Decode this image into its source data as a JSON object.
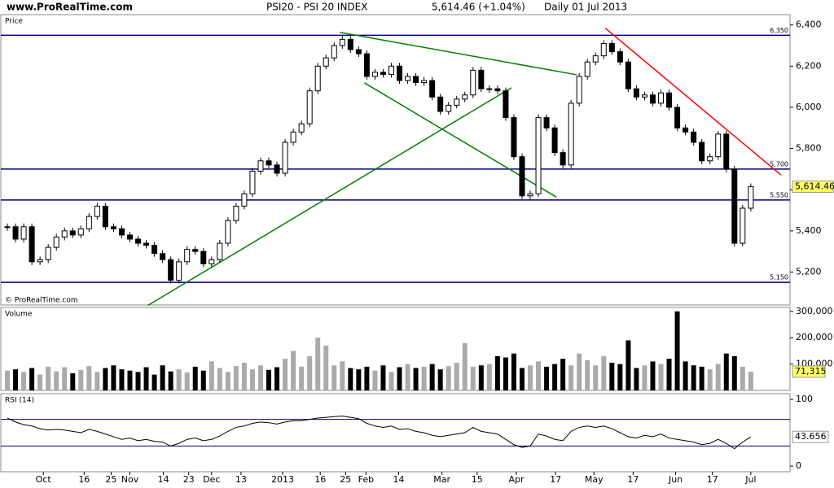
{
  "chart_data": [
    {
      "type": "candlestick",
      "site": "www.ProRealTime.com",
      "title": "PSI20 - PSI 20 INDEX",
      "last": "5,614.46 (+1.04%)",
      "period": "Daily  01 Jul 2013",
      "panel_label": "Price",
      "copyright": "© ProRealTime.com",
      "last_label": "5,614.46",
      "xlim": [
        -0.8,
        95.8
      ],
      "xticks": [
        {
          "value": 4.4,
          "label": "Oct"
        },
        {
          "value": 9.4,
          "label": "16"
        },
        {
          "value": 12.7,
          "label": "25"
        },
        {
          "value": 15,
          "label": "Nov"
        },
        {
          "value": 19.1,
          "label": "14"
        },
        {
          "value": 22.2,
          "label": "23"
        },
        {
          "value": 25,
          "label": "Dec"
        },
        {
          "value": 28.6,
          "label": "13"
        },
        {
          "value": 33.7,
          "label": "2013"
        },
        {
          "value": 38.3,
          "label": "16"
        },
        {
          "value": 41.4,
          "label": "25"
        },
        {
          "value": 43.9,
          "label": "Feb"
        },
        {
          "value": 47.9,
          "label": "14"
        },
        {
          "value": 53.2,
          "label": "Mar"
        },
        {
          "value": 57.5,
          "label": "15"
        },
        {
          "value": 62.3,
          "label": "Apr"
        },
        {
          "value": 67.1,
          "label": "17"
        },
        {
          "value": 71.8,
          "label": "May"
        },
        {
          "value": 76.6,
          "label": "17"
        },
        {
          "value": 81.8,
          "label": "Jun"
        },
        {
          "value": 86.3,
          "label": "17"
        },
        {
          "value": 91,
          "label": "Jul"
        }
      ],
      "ylim": [
        5040,
        6450
      ],
      "yticks": [
        {
          "value": 5200,
          "label": "5,200"
        },
        {
          "value": 5400,
          "label": "5,400"
        },
        {
          "value": 5600,
          "label": "5,600"
        },
        {
          "value": 5800,
          "label": "5,800"
        },
        {
          "value": 6000,
          "label": "6,000"
        },
        {
          "value": 6200,
          "label": "6,200"
        },
        {
          "value": 6400,
          "label": "6,400"
        }
      ],
      "levels": [
        {
          "value": 6350,
          "label": "6,350"
        },
        {
          "value": 5700,
          "label": "5,700"
        },
        {
          "value": 5550,
          "label": "5,550"
        },
        {
          "value": 5150,
          "label": "5,150"
        }
      ],
      "level_color": "#000080",
      "trendlines": [
        {
          "color": "#008000",
          "x": [
            17.2,
            61.7
          ],
          "y": [
            5038,
            6095
          ]
        },
        {
          "color": "#008000",
          "x": [
            43.7,
            67.2
          ],
          "y": [
            6119,
            5564
          ]
        },
        {
          "color": "#008000",
          "x": [
            40.7,
            69.7
          ],
          "y": [
            6364,
            6158
          ]
        },
        {
          "color": "#ff0000",
          "x": [
            73.2,
            94.7
          ],
          "y": [
            6384,
            5671
          ]
        }
      ],
      "close": [
        5420,
        5360,
        5420,
        5250,
        5260,
        5320,
        5370,
        5400,
        5380,
        5410,
        5470,
        5520,
        5420,
        5410,
        5380,
        5360,
        5340,
        5330,
        5290,
        5260,
        5160,
        5250,
        5310,
        5300,
        5240,
        5260,
        5340,
        5450,
        5520,
        5580,
        5690,
        5740,
        5720,
        5680,
        5830,
        5880,
        5920,
        6080,
        6200,
        6240,
        6300,
        6330,
        6280,
        6260,
        6150,
        6170,
        6160,
        6200,
        6130,
        6150,
        6120,
        6130,
        6050,
        5980,
        6010,
        6040,
        6060,
        6180,
        6090,
        6090,
        6080,
        5950,
        5760,
        5570,
        5580,
        5950,
        5900,
        5780,
        5720,
        6020,
        6150,
        6220,
        6250,
        6310,
        6270,
        6220,
        6090,
        6050,
        6060,
        6020,
        6070,
        6000,
        5900,
        5880,
        5830,
        5740,
        5760,
        5870,
        5700,
        5340,
        5510,
        5614.46
      ]
    },
    {
      "type": "volume",
      "panel_label": "Volume",
      "last_label": "71,315",
      "ylim": [
        0,
        315000
      ],
      "yticks": [
        {
          "value": 100000,
          "label": "100,000"
        },
        {
          "value": 200000,
          "label": "200,000"
        },
        {
          "value": 300000,
          "label": "300,000"
        }
      ],
      "values": [
        75000,
        80000,
        70000,
        85000,
        60000,
        90000,
        72000,
        88000,
        65000,
        78000,
        92000,
        70000,
        85000,
        95000,
        80000,
        75000,
        70000,
        88000,
        60000,
        95000,
        72000,
        80000,
        68000,
        90000,
        75000,
        110000,
        85000,
        70000,
        92000,
        105000,
        80000,
        95000,
        78000,
        88000,
        120000,
        150000,
        90000,
        130000,
        200000,
        170000,
        95000,
        110000,
        85000,
        80000,
        90000,
        75000,
        95000,
        70000,
        88000,
        100000,
        85000,
        90000,
        100000,
        80000,
        92000,
        105000,
        180000,
        90000,
        95000,
        100000,
        130000,
        125000,
        140000,
        85000,
        95000,
        110000,
        90000,
        100000,
        120000,
        95000,
        140000,
        115000,
        95000,
        130000,
        105000,
        100000,
        190000,
        85000,
        95000,
        110000,
        100000,
        120000,
        300000,
        110000,
        95000,
        90000,
        80000,
        100000,
        140000,
        130000,
        90000,
        71315
      ]
    },
    {
      "type": "rsi",
      "panel_label": "RSI (14)",
      "last_label": "43.656",
      "ylim": [
        -8.5,
        108.5
      ],
      "levels": [
        70,
        30
      ],
      "yticks": [
        0,
        100
      ],
      "values": [
        72,
        66,
        62,
        60,
        56,
        54,
        55,
        54,
        52,
        50,
        55,
        52,
        48,
        44,
        40,
        42,
        38,
        40,
        37,
        36,
        30,
        34,
        40,
        42,
        38,
        40,
        45,
        52,
        58,
        60,
        64,
        66,
        65,
        63,
        66,
        68,
        68,
        70,
        72,
        73,
        74,
        75,
        73,
        71,
        64,
        60,
        58,
        60,
        55,
        56,
        52,
        50,
        46,
        44,
        46,
        48,
        50,
        58,
        52,
        50,
        48,
        40,
        32,
        28,
        30,
        48,
        45,
        40,
        38,
        52,
        58,
        60,
        58,
        60,
        56,
        50,
        44,
        42,
        46,
        44,
        48,
        42,
        40,
        38,
        36,
        32,
        34,
        40,
        34,
        26,
        36,
        43.656
      ]
    }
  ]
}
